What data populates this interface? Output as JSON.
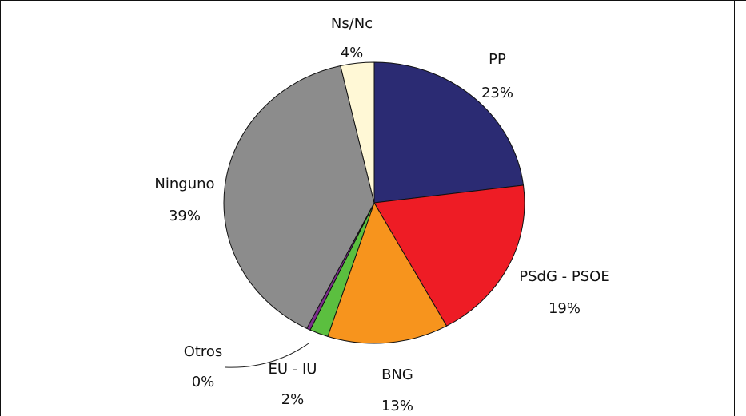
{
  "chart_data": {
    "type": "pie",
    "slices": [
      {
        "name": "PP",
        "value": 23,
        "value_label": "23%",
        "color": "#2b2b73"
      },
      {
        "name": "PSdG - PSOE",
        "value": 19,
        "value_label": "19%",
        "color": "#ee1c25"
      },
      {
        "name": "BNG",
        "value": 13,
        "value_label": "13%",
        "color": "#f7941d"
      },
      {
        "name": "EU - IU",
        "value": 2,
        "value_label": "2%",
        "color": "#5bbf3f"
      },
      {
        "name": "Otros",
        "value": 0.4,
        "value_label": "0%",
        "color": "#7b2d8b"
      },
      {
        "name": "Ninguno",
        "value": 39,
        "value_label": "39%",
        "color": "#8c8c8c"
      },
      {
        "name": "Ns/Nc",
        "value": 3.6,
        "value_label": "4%",
        "color": "#fff8d6"
      }
    ],
    "start": "12 o'clock",
    "direction": "clockwise"
  }
}
